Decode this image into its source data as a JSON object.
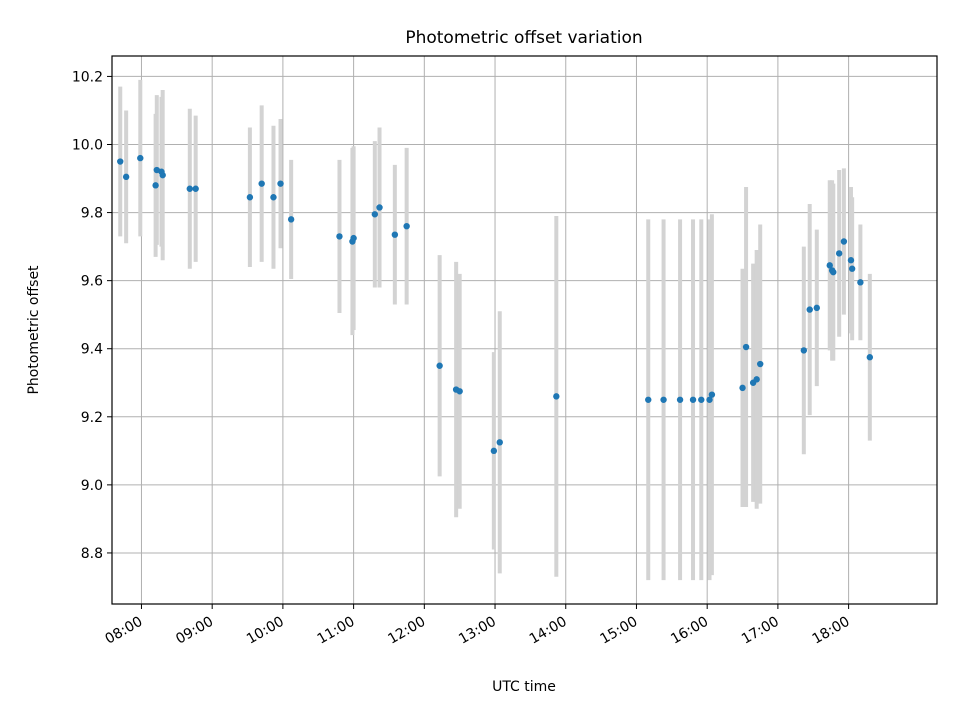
{
  "chart_data": {
    "type": "scatter",
    "title": "Photometric offset variation",
    "xlabel": "UTC time",
    "ylabel": "Photometric offset",
    "xlim": [
      "07:35",
      "19:15"
    ],
    "ylim": [
      8.65,
      10.26
    ],
    "grid": true,
    "x_ticks": [
      "08:00",
      "09:00",
      "10:00",
      "11:00",
      "12:00",
      "13:00",
      "14:00",
      "15:00",
      "16:00",
      "17:00",
      "18:00"
    ],
    "y_ticks": [
      8.8,
      9.0,
      9.2,
      9.4,
      9.6,
      9.8,
      10.0,
      10.2
    ],
    "colors": {
      "points": "#1f77b4",
      "errorbars": "#d3d3d3",
      "grid": "#b0b0b0"
    },
    "series": [
      {
        "x": [
          "07:42",
          "07:47",
          "07:59",
          "08:12",
          "08:13",
          "08:17",
          "08:18",
          "08:41",
          "08:46",
          "09:32",
          "09:42",
          "09:52",
          "09:58",
          "10:07",
          "10:48",
          "10:59",
          "11:00",
          "11:18",
          "11:22",
          "11:35",
          "11:45",
          "12:13",
          "12:27",
          "12:30",
          "12:59",
          "13:04",
          "13:52",
          "15:10",
          "15:23",
          "15:37",
          "15:48",
          "15:55",
          "16:02",
          "16:04",
          "16:30",
          "16:33",
          "16:39",
          "16:42",
          "16:45",
          "17:22",
          "17:27",
          "17:33",
          "17:44",
          "17:46",
          "17:47",
          "17:52",
          "17:56",
          "18:02",
          "18:03",
          "18:10",
          "18:18"
        ],
        "y": [
          9.95,
          9.905,
          9.96,
          9.88,
          9.925,
          9.92,
          9.91,
          9.87,
          9.87,
          9.845,
          9.885,
          9.845,
          9.885,
          9.78,
          9.73,
          9.715,
          9.725,
          9.795,
          9.815,
          9.735,
          9.76,
          9.35,
          9.28,
          9.275,
          9.1,
          9.125,
          9.26,
          9.25,
          9.25,
          9.25,
          9.25,
          9.25,
          9.25,
          9.265,
          9.285,
          9.405,
          9.3,
          9.31,
          9.355,
          9.395,
          9.515,
          9.52,
          9.645,
          9.63,
          9.625,
          9.68,
          9.715,
          9.66,
          9.635,
          9.595,
          9.375
        ],
        "yerr": [
          0.22,
          0.195,
          0.23,
          0.21,
          0.22,
          0.22,
          0.25,
          0.235,
          0.215,
          0.205,
          0.23,
          0.21,
          0.19,
          0.175,
          0.225,
          0.275,
          0.27,
          0.215,
          0.235,
          0.205,
          0.23,
          0.325,
          0.375,
          0.345,
          0.29,
          0.385,
          0.53,
          0.53,
          0.53,
          0.53,
          0.53,
          0.53,
          0.53,
          0.53,
          0.35,
          0.47,
          0.35,
          0.38,
          0.41,
          0.305,
          0.31,
          0.23,
          0.25,
          0.265,
          0.26,
          0.245,
          0.215,
          0.215,
          0.21,
          0.17,
          0.245
        ]
      }
    ]
  }
}
